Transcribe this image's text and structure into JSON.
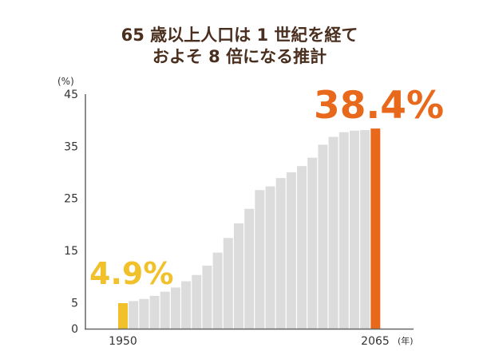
{
  "chart_data": {
    "type": "bar",
    "title_lines": [
      "65 歳以上人口は 1 世紀を経て",
      "およそ 8 倍になる推計"
    ],
    "ylabel": "(%)",
    "xlabel": "(年)",
    "ylim": [
      0,
      45
    ],
    "yticks": [
      0,
      5,
      15,
      25,
      35,
      45
    ],
    "x_tick_labels": [
      "1950",
      "2065"
    ],
    "values": [
      4.9,
      5.3,
      5.7,
      6.3,
      7.1,
      7.9,
      9.1,
      10.3,
      12.1,
      14.6,
      17.4,
      20.2,
      23.0,
      26.6,
      27.3,
      28.9,
      30.0,
      31.2,
      32.8,
      35.3,
      36.8,
      37.7,
      38.0,
      38.1,
      38.4
    ],
    "annotations": {
      "first": "4.9%",
      "last": "38.4%"
    },
    "grid": false,
    "colors": {
      "first": "#f0c12a",
      "last": "#e8691b",
      "other": "#dcdcdc",
      "axis": "#666666",
      "title": "#4a2e1e"
    }
  }
}
